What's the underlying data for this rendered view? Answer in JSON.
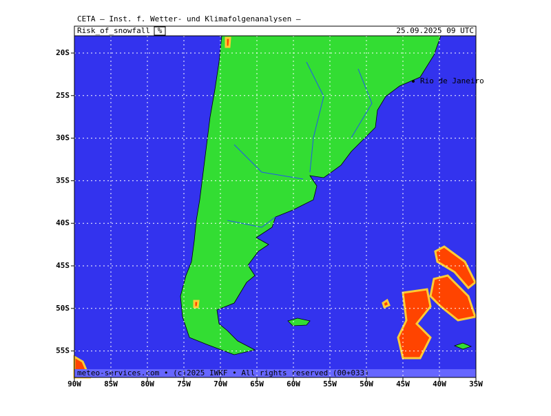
{
  "header": {
    "title": "CETA — Inst. f. Wetter- und Klimafolgenanalysen —",
    "field": "Risk_of_snowfall",
    "unit": "%",
    "valid_time": "25.09.2025 09 UTC"
  },
  "map": {
    "lat_labels": [
      "20S",
      "25S",
      "30S",
      "35S",
      "40S",
      "45S",
      "50S",
      "55S"
    ],
    "lon_labels": [
      "90W",
      "85W",
      "80W",
      "75W",
      "70W",
      "65W",
      "60W",
      "55W",
      "50W",
      "45W",
      "40W",
      "35W"
    ],
    "place": "Rio de Janeiro",
    "footer": "meteo-services.com • (c)2025 IWKF • All rights reserved (00+033)"
  }
}
